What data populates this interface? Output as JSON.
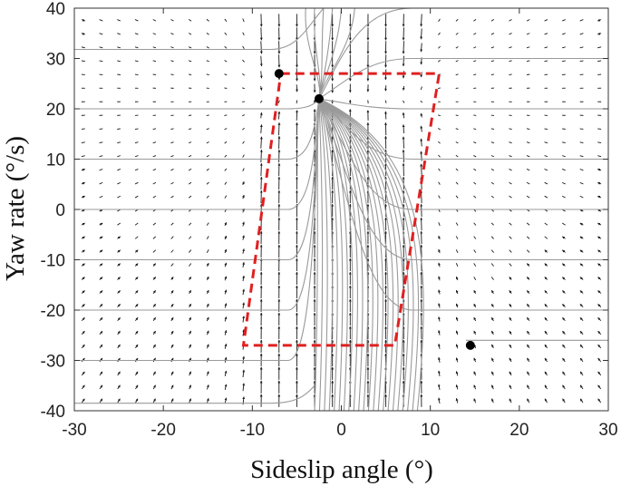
{
  "chart_data": {
    "type": "phase-portrait",
    "title": "",
    "xlabel": "Sideslip angle (°)",
    "ylabel": "Yaw rate (°/s)",
    "xlim": [
      -30,
      30
    ],
    "ylim": [
      -40,
      40
    ],
    "xticks": [
      -30,
      -20,
      -10,
      0,
      10,
      20,
      30
    ],
    "yticks": [
      -40,
      -30,
      -20,
      -10,
      0,
      10,
      20,
      30,
      40
    ],
    "xtick_labels": [
      "-30",
      "-20",
      "-10",
      "0",
      "10",
      "20",
      "30"
    ],
    "ytick_labels": [
      "-40",
      "-30",
      "-20",
      "-10",
      "0",
      "10",
      "20",
      "30",
      "40"
    ],
    "grid": false,
    "colors": {
      "trajectory": "#9a9a9a",
      "arrow": "#1a1a1a",
      "boundary": "#e02020",
      "point": "#000000"
    },
    "equilibrium_points": [
      {
        "x": -7,
        "y": 27,
        "kind": "saddle"
      },
      {
        "x": -2.5,
        "y": 22,
        "kind": "stable"
      },
      {
        "x": 14.5,
        "y": -27,
        "kind": "saddle"
      }
    ],
    "stability_boundary": [
      {
        "x": -6.8,
        "y": 27
      },
      {
        "x": 11,
        "y": 27
      },
      {
        "x": 6,
        "y": -27
      },
      {
        "x": -11,
        "y": -27
      }
    ]
  }
}
